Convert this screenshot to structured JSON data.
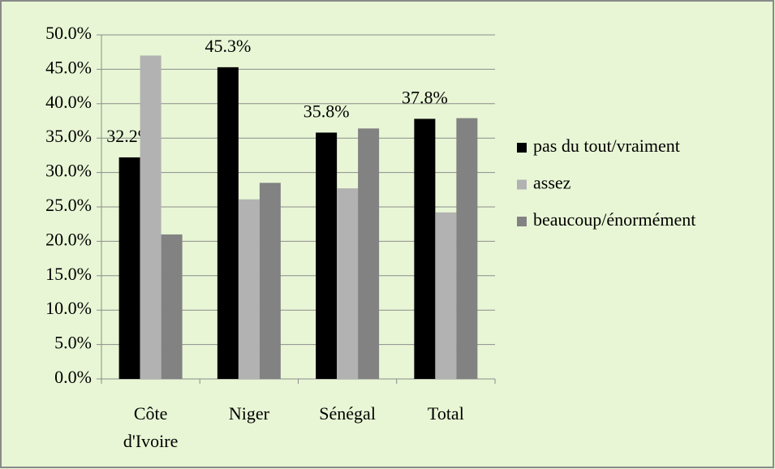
{
  "chart_data": {
    "type": "bar",
    "categories": [
      "Côte d'Ivoire",
      "Niger",
      "Sénégal",
      "Total"
    ],
    "series": [
      {
        "name": "pas du tout/vraiment",
        "color": "#000000",
        "values": [
          32.2,
          45.3,
          35.8,
          37.8
        ],
        "value_labels": [
          "32.2%",
          "45.3%",
          "35.8%",
          "37.8%"
        ]
      },
      {
        "name": "assez",
        "color": "#b2b2b2",
        "values": [
          47.0,
          26.1,
          27.7,
          24.2
        ]
      },
      {
        "name": "beaucoup/énormément",
        "color": "#828282",
        "values": [
          21.0,
          28.5,
          36.4,
          37.9
        ]
      }
    ],
    "ylim": [
      0,
      50
    ],
    "yticks": [
      {
        "value": 0,
        "label": "0.0%"
      },
      {
        "value": 5,
        "label": "5.0%"
      },
      {
        "value": 10,
        "label": "10.0%"
      },
      {
        "value": 15,
        "label": "15.0%"
      },
      {
        "value": 20,
        "label": "20.0%"
      },
      {
        "value": 25,
        "label": "25.0%"
      },
      {
        "value": 30,
        "label": "30.0%"
      },
      {
        "value": 35,
        "label": "35.0%"
      },
      {
        "value": 40,
        "label": "40.0%"
      },
      {
        "value": 45,
        "label": "45.0%"
      },
      {
        "value": 50,
        "label": "50.0%"
      }
    ],
    "grid": true,
    "legend": "right"
  }
}
